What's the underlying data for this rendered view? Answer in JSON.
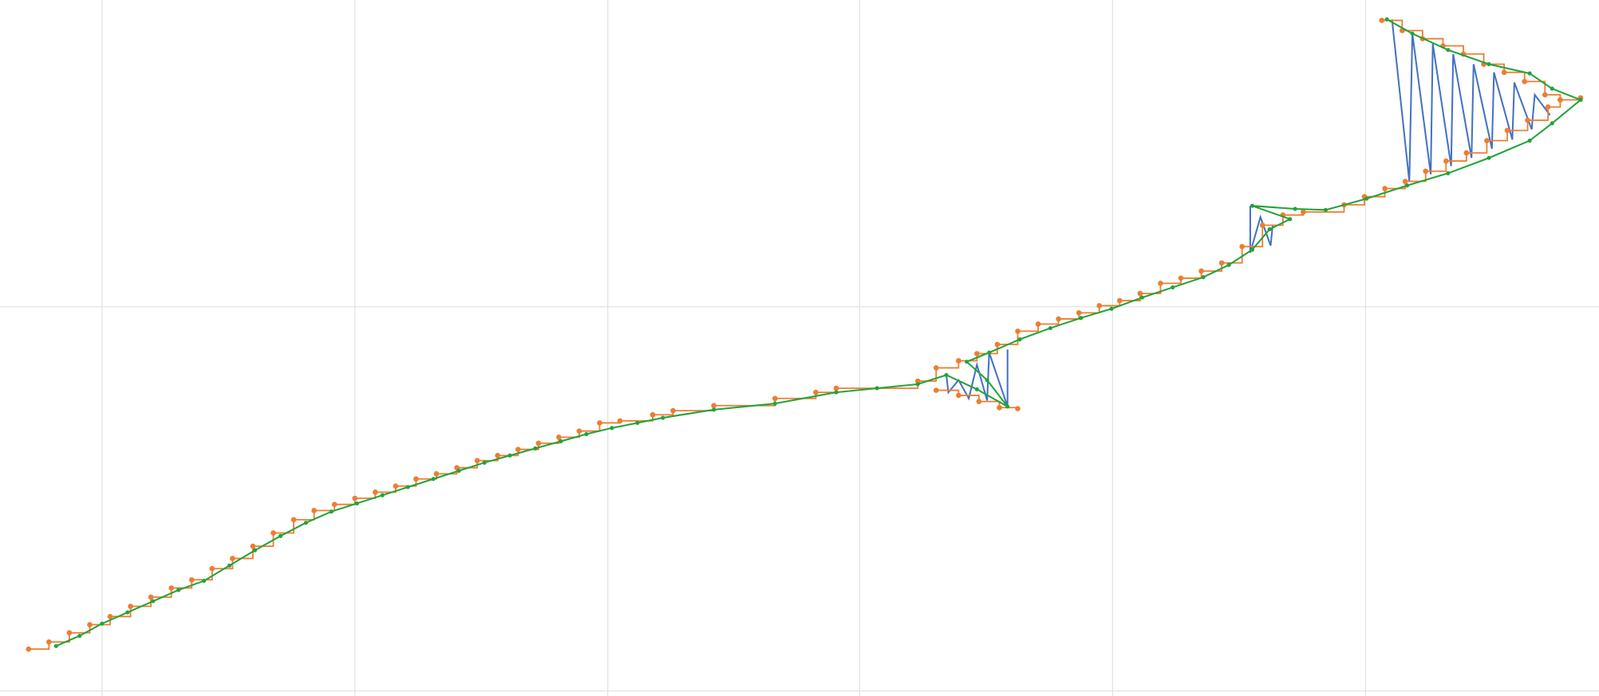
{
  "chart_data": {
    "type": "line",
    "xlim": [
      0,
      1568
    ],
    "ylim": [
      0,
      683
    ],
    "xticks": [
      100,
      348,
      596,
      843,
      1091,
      1339
    ],
    "yticks": [
      5,
      382
    ],
    "grid": true,
    "grid_color": "#e3e3e3",
    "series": [
      {
        "style": "line",
        "color": "#4472c4",
        "x": [
          1365,
          1382,
          1385,
          1403,
          1405,
          1423,
          1425,
          1443,
          1445,
          1463,
          1465,
          1483,
          1485,
          1502,
          1505,
          1520
        ],
        "values": [
          664,
          505,
          650,
          512,
          640,
          520,
          630,
          528,
          620,
          537,
          612,
          546,
          602,
          556,
          590,
          570
        ]
      },
      {
        "style": "line",
        "color": "#4472c4",
        "x": [
          1226,
          1226,
          1236,
          1246,
          1248
        ],
        "values": [
          481,
          435,
          470,
          442,
          462
        ]
      },
      {
        "style": "line",
        "color": "#4472c4",
        "x": [
          928,
          930,
          940,
          950,
          958,
          968,
          970,
          988,
          988
        ],
        "values": [
          315,
          298,
          310,
          292,
          325,
          290,
          337,
          284,
          340
        ]
      },
      {
        "style": "step",
        "color": "#ed7d31",
        "x": [
          28,
          48,
          68,
          88,
          108,
          128,
          148,
          168,
          188,
          208,
          228,
          248,
          268,
          288,
          308,
          328,
          348,
          368,
          388,
          408,
          428,
          448,
          468,
          488,
          508,
          528,
          548,
          568,
          588,
          608,
          640,
          660,
          700,
          760,
          800,
          820,
          900,
          918,
          940,
          958,
          978,
          998,
          1018,
          1038,
          1058,
          1078,
          1098,
          1118,
          1138,
          1158,
          1178,
          1198,
          1218,
          1238,
          1258,
          1278,
          1318,
          1338,
          1358,
          1378,
          1398,
          1418,
          1438,
          1458,
          1478,
          1498,
          1518,
          1530,
          1550
        ],
        "values": [
          46,
          53,
          62,
          70,
          78,
          88,
          97,
          106,
          114,
          125,
          135,
          147,
          160,
          173,
          182,
          188,
          194,
          200,
          206,
          213,
          218,
          224,
          231,
          236,
          242,
          248,
          254,
          260,
          268,
          270,
          276,
          280,
          285,
          292,
          298,
          302,
          309,
          322,
          329,
          336,
          345,
          358,
          365,
          370,
          376,
          383,
          388,
          395,
          405,
          410,
          417,
          425,
          441,
          462,
          472,
          475,
          482,
          490,
          498,
          505,
          515,
          525,
          533,
          545,
          555,
          565,
          578,
          585,
          587
        ]
      },
      {
        "style": "step",
        "color": "#ed7d31",
        "x": [
          1355,
          1375,
          1395,
          1415,
          1435,
          1455,
          1475,
          1495,
          1515,
          1530
        ],
        "values": [
          663,
          653,
          645,
          638,
          630,
          620,
          612,
          603,
          590,
          585
        ]
      },
      {
        "style": "step",
        "color": "#ed7d31",
        "x": [
          918,
          940,
          960,
          980,
          998
        ],
        "values": [
          300,
          295,
          289,
          283,
          282
        ]
      },
      {
        "style": "line",
        "color": "#22a33a",
        "x": [
          55,
          78,
          100,
          125,
          150,
          175,
          200,
          225,
          250,
          275,
          300,
          325,
          350,
          375,
          400,
          425,
          450,
          475,
          500,
          525,
          550,
          575,
          600,
          625,
          650,
          700,
          760,
          820,
          860,
          900,
          928,
          958,
          988,
          968,
          948,
          970,
          1000,
          1030,
          1060,
          1090,
          1120,
          1150,
          1180,
          1205,
          1228,
          1245,
          1265,
          1228,
          1270,
          1300,
          1340,
          1380,
          1420,
          1460,
          1500,
          1522,
          1550,
          1522,
          1500,
          1460,
          1420,
          1385,
          1360
        ],
        "values": [
          49,
          59,
          71,
          82,
          93,
          104,
          113,
          128,
          143,
          157,
          170,
          181,
          189,
          197,
          205,
          213,
          221,
          229,
          236,
          243,
          250,
          257,
          263,
          268,
          273,
          281,
          287,
          298,
          302,
          306,
          315,
          301,
          284,
          310,
          328,
          337,
          350,
          361,
          371,
          380,
          391,
          401,
          411,
          423,
          438,
          458,
          468,
          481,
          478,
          477,
          488,
          501,
          513,
          528,
          545,
          562,
          585,
          596,
          611,
          620,
          634,
          650,
          664
        ]
      }
    ]
  }
}
